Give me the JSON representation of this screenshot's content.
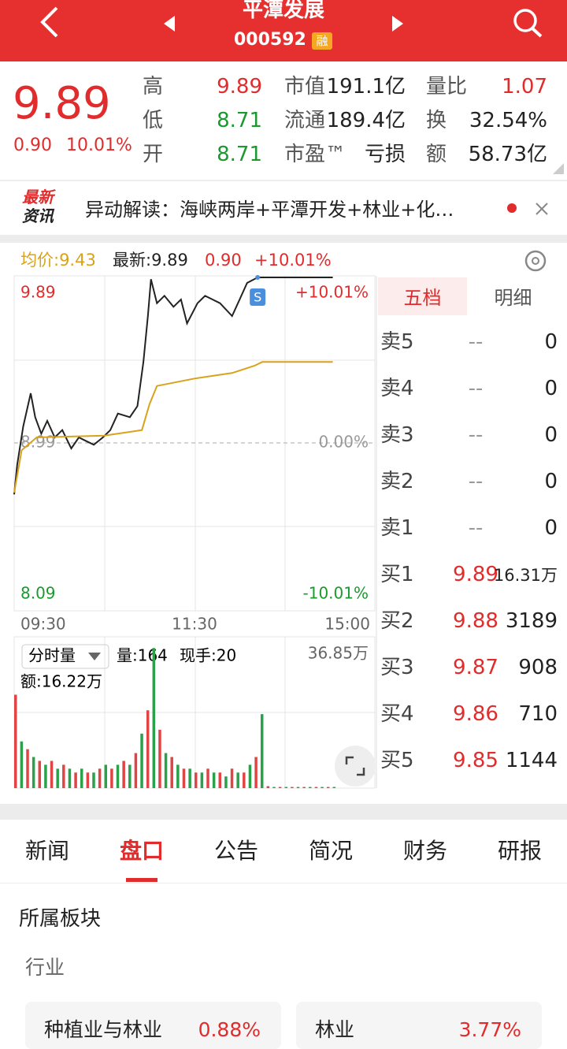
{
  "header": {
    "title": "平潭发展",
    "code": "000592",
    "badge": "融"
  },
  "quote": {
    "price": "9.89",
    "change": "0.90",
    "change_pct": "10.01%",
    "stats": [
      {
        "label": "高",
        "value": "9.89"
      },
      {
        "label": "低",
        "value": "8.71"
      },
      {
        "label": "开",
        "value": "8.71"
      },
      {
        "label": "市值",
        "value": "191.1亿"
      },
      {
        "label": "流通",
        "value": "189.4亿"
      },
      {
        "label": "市盈™",
        "value": "亏损"
      },
      {
        "label": "量比",
        "value": "1.07"
      },
      {
        "label": "换",
        "value": "32.54%"
      },
      {
        "label": "额",
        "value": "58.73亿"
      }
    ]
  },
  "news": {
    "logo": [
      "最新",
      "资讯"
    ],
    "text": "异动解读：海峡两岸+平潭开发+林业+化…"
  },
  "chart_data": [
    {
      "type": "line",
      "header": [
        "均价:9.43",
        "最新:9.89",
        "0.90",
        "+10.01%"
      ],
      "annotation": "S",
      "xlim": [
        0,
        240
      ],
      "xticks": [
        {
          "value": 0,
          "label": "09:30"
        },
        {
          "value": 120,
          "label": "11:30"
        },
        {
          "value": 240,
          "label": "15:00"
        }
      ],
      "ylim": [
        8.09,
        9.89
      ],
      "yticks": [
        8.09,
        8.99,
        9.89
      ],
      "y2lim": [
        -10.01,
        10.01
      ],
      "y2ticks": [
        {
          "value": -10.01,
          "label": "-10.01%"
        },
        {
          "value": 0,
          "label": "0.00%"
        },
        {
          "value": 10.01,
          "label": "+10.01%"
        }
      ],
      "series": [
        {
          "color": "#222222",
          "x": [
            0,
            2,
            6,
            11,
            14,
            18,
            22,
            27,
            32,
            38,
            43,
            48,
            53,
            59,
            64,
            69,
            77,
            82,
            86,
            89,
            91,
            95,
            100,
            106,
            111,
            115,
            122,
            127,
            132,
            137,
            145,
            150,
            155,
            162,
            212
          ],
          "values": [
            8.71,
            8.87,
            9.08,
            9.26,
            9.13,
            9.04,
            9.11,
            9.02,
            9.06,
            8.96,
            9.02,
            9.0,
            8.98,
            9.02,
            9.06,
            9.15,
            9.13,
            9.19,
            9.43,
            9.68,
            9.88,
            9.75,
            9.79,
            9.73,
            9.77,
            9.64,
            9.75,
            9.79,
            9.77,
            9.75,
            9.68,
            9.77,
            9.86,
            9.89,
            9.89
          ]
        },
        {
          "color": "#d9a21b",
          "x": [
            0,
            5,
            15,
            60,
            85,
            90,
            95,
            120,
            145,
            160,
            165,
            212
          ],
          "values": [
            8.72,
            8.95,
            9.02,
            9.03,
            9.06,
            9.2,
            9.3,
            9.34,
            9.37,
            9.41,
            9.43,
            9.43
          ]
        }
      ]
    },
    {
      "type": "bar",
      "title": "分时量",
      "labels": [
        "量:164",
        "现手:20",
        "额:16.22万"
      ],
      "xlim": [
        0,
        240
      ],
      "ylim": [
        0,
        36.85
      ],
      "yticks": [
        {
          "value": 36.85,
          "label": "36.85万"
        }
      ],
      "colors": [
        "#e04444",
        "#2aa14a"
      ],
      "x": [
        0,
        4,
        8,
        12,
        16,
        20,
        24,
        28,
        32,
        36,
        40,
        44,
        48,
        52,
        56,
        60,
        64,
        68,
        72,
        76,
        80,
        84,
        88,
        92,
        96,
        100,
        104,
        108,
        112,
        116,
        120,
        124,
        128,
        132,
        136,
        140,
        144,
        148,
        152,
        156,
        160,
        164,
        168,
        172,
        176,
        180,
        184,
        188,
        192,
        196,
        200,
        204,
        208,
        212
      ],
      "values": [
        24,
        12,
        10,
        8,
        7,
        6,
        7,
        5,
        6,
        5,
        4,
        5,
        4,
        4,
        5,
        6,
        5,
        6,
        7,
        6,
        9,
        14,
        20,
        36,
        15,
        9,
        8,
        6,
        5,
        5,
        4,
        4,
        5,
        4,
        4,
        3,
        5,
        4,
        4,
        6,
        8,
        19,
        0.5,
        0.3,
        0.3,
        0.3,
        0.3,
        0.3,
        0.3,
        0.3,
        0.3,
        0.3,
        0.3,
        0.3
      ]
    }
  ],
  "order_book": {
    "tabs": [
      "五档",
      "明细"
    ],
    "rows": [
      {
        "label": "卖5",
        "price": "--",
        "volume": "0"
      },
      {
        "label": "卖4",
        "price": "--",
        "volume": "0"
      },
      {
        "label": "卖3",
        "price": "--",
        "volume": "0"
      },
      {
        "label": "卖2",
        "price": "--",
        "volume": "0"
      },
      {
        "label": "卖1",
        "price": "--",
        "volume": "0"
      },
      {
        "label": "买1",
        "price": "9.89",
        "volume": "16.31万"
      },
      {
        "label": "买2",
        "price": "9.88",
        "volume": "3189"
      },
      {
        "label": "买3",
        "price": "9.87",
        "volume": "908"
      },
      {
        "label": "买4",
        "price": "9.86",
        "volume": "710"
      },
      {
        "label": "买5",
        "price": "9.85",
        "volume": "1144"
      }
    ]
  },
  "tabs": [
    "新闻",
    "盘口",
    "公告",
    "简况",
    "财务",
    "研报"
  ],
  "sector": {
    "title": "所属板块",
    "subtitle": "行业",
    "cards": [
      {
        "name": "种植业与林业",
        "change": "0.88%"
      },
      {
        "name": "林业",
        "change": "3.77%"
      }
    ]
  }
}
